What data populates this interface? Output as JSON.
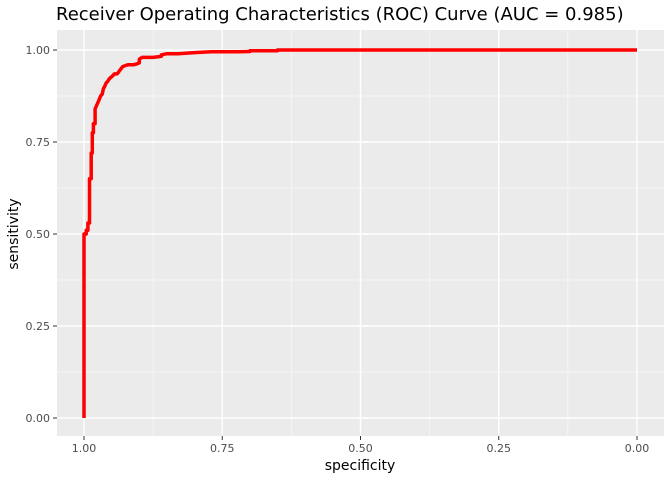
{
  "chart_data": {
    "type": "line",
    "title": "Receiver Operating Characteristics (ROC) Curve (AUC = 0.985)",
    "xlabel": "specificity",
    "ylabel": "sensitivity",
    "x_reversed": true,
    "xlim": [
      1.0,
      0.0
    ],
    "ylim": [
      0.0,
      1.0
    ],
    "x_ticks": [
      "1.00",
      "0.75",
      "0.50",
      "0.25",
      "0.00"
    ],
    "y_ticks": [
      "0.00",
      "0.25",
      "0.50",
      "0.75",
      "1.00"
    ],
    "grid": true,
    "legend": "none",
    "series": [
      {
        "color": "#ff0000",
        "x": [
          1.0,
          1.0,
          0.996,
          0.996,
          0.993,
          0.993,
          0.99,
          0.99,
          0.987,
          0.987,
          0.985,
          0.985,
          0.983,
          0.983,
          0.98,
          0.98,
          0.977,
          0.974,
          0.97,
          0.967,
          0.965,
          0.963,
          0.96,
          0.957,
          0.955,
          0.952,
          0.948,
          0.945,
          0.94,
          0.935,
          0.93,
          0.925,
          0.92,
          0.915,
          0.91,
          0.905,
          0.9,
          0.9,
          0.895,
          0.885,
          0.875,
          0.86,
          0.86,
          0.85,
          0.83,
          0.8,
          0.8,
          0.77,
          0.75,
          0.72,
          0.7,
          0.7,
          0.65,
          0.65,
          0.5,
          0.25,
          0.0
        ],
        "y": [
          0.0,
          0.5,
          0.5,
          0.51,
          0.51,
          0.53,
          0.53,
          0.65,
          0.65,
          0.72,
          0.72,
          0.775,
          0.775,
          0.8,
          0.8,
          0.84,
          0.85,
          0.86,
          0.875,
          0.88,
          0.895,
          0.9,
          0.91,
          0.915,
          0.92,
          0.925,
          0.93,
          0.935,
          0.935,
          0.945,
          0.955,
          0.958,
          0.96,
          0.96,
          0.96,
          0.962,
          0.965,
          0.975,
          0.98,
          0.98,
          0.98,
          0.983,
          0.987,
          0.99,
          0.99,
          0.993,
          0.993,
          0.995,
          0.995,
          0.995,
          0.996,
          0.998,
          0.998,
          1.0,
          1.0,
          1.0,
          1.0
        ]
      }
    ]
  }
}
